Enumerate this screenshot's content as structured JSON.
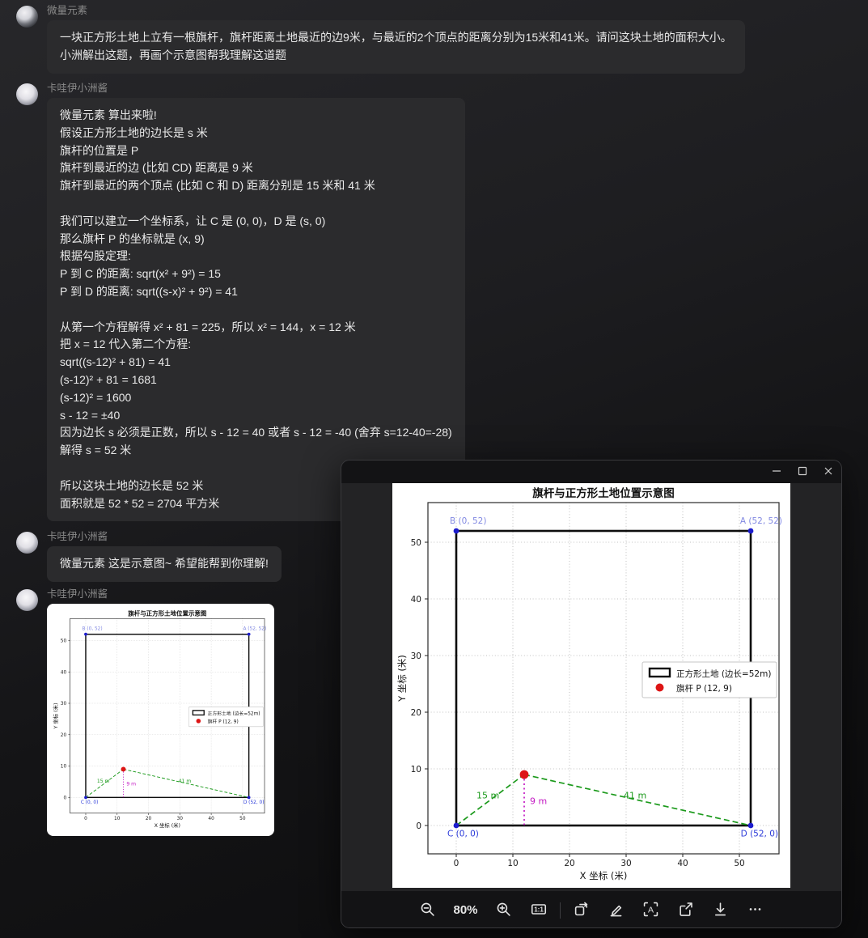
{
  "chat": {
    "messages": [
      {
        "author": "微量元素",
        "lines": [
          "一块正方形土地上立有一根旗杆，旗杆距离土地最近的边9米，与最近的2个顶点的距离分别为15米和41米。请问这块土地的面积大小。",
          "小洲解出这题，再画个示意图帮我理解这道题"
        ]
      },
      {
        "author": "卡哇伊小洲酱",
        "lines": [
          "微量元素 算出来啦!",
          "假设正方形土地的边长是 s 米",
          "旗杆的位置是 P",
          "旗杆到最近的边 (比如 CD) 距离是 9 米",
          "旗杆到最近的两个顶点 (比如 C 和 D) 距离分别是 15 米和 41 米",
          "",
          "我们可以建立一个坐标系，让 C 是 (0, 0)，D 是 (s, 0)",
          "那么旗杆 P 的坐标就是 (x, 9)",
          "根据勾股定理:",
          "P 到 C 的距离: sqrt(x² + 9²) = 15",
          "P 到 D 的距离: sqrt((s-x)² + 9²) = 41",
          "",
          "从第一个方程解得 x² + 81 = 225，所以 x² = 144，x = 12 米",
          "把 x = 12 代入第二个方程:",
          "sqrt((s-12)² + 81) = 41",
          "(s-12)² + 81 = 1681",
          "(s-12)² = 1600",
          "s - 12 = ±40",
          "因为边长 s 必须是正数，所以 s - 12 = 40 或者 s - 12 = -40 (舍弃 s=12-40=-28)",
          "解得 s = 52 米",
          "",
          "所以这块土地的边长是 52 米",
          "面积就是 52 * 52 = 2704 平方米"
        ]
      },
      {
        "author": "卡哇伊小洲酱",
        "lines": [
          "微量元素 这是示意图~ 希望能帮到你理解!"
        ]
      },
      {
        "author": "卡哇伊小洲酱",
        "attachment": "chart-image"
      }
    ]
  },
  "viewer": {
    "window_controls": [
      "minimize-icon",
      "maximize-icon",
      "close-icon"
    ],
    "toolbar": {
      "zoom_level": "80%",
      "actual_size_label": "1:1",
      "items": [
        "zoom-out-icon",
        "zoom-level",
        "zoom-in-icon",
        "actual-size-icon",
        "divider",
        "rotate-icon",
        "edit-icon",
        "ocr-icon",
        "share-icon",
        "download-icon",
        "more-icon"
      ]
    }
  },
  "chart_data": {
    "type": "scatter",
    "title": "旗杆与正方形土地位置示意图",
    "xlabel": "X 坐标 (米)",
    "ylabel": "Y 坐标 (米)",
    "xlim": [
      -5,
      57
    ],
    "ylim": [
      -5,
      57
    ],
    "ticks": [
      0,
      10,
      20,
      30,
      40,
      50
    ],
    "grid": true,
    "square": {
      "side": 52,
      "corners": [
        {
          "name": "B",
          "x": 0,
          "y": 52
        },
        {
          "name": "A",
          "x": 52,
          "y": 52
        },
        {
          "name": "C",
          "x": 0,
          "y": 0
        },
        {
          "name": "D",
          "x": 52,
          "y": 0
        }
      ]
    },
    "flagpole": {
      "name": "P",
      "x": 12,
      "y": 9
    },
    "distance_lines": [
      {
        "from": "C",
        "to": "P",
        "label": "15 m"
      },
      {
        "from": "P",
        "to": "D",
        "label": "41 m"
      },
      {
        "from": "P",
        "to": "foot",
        "label": "9 m"
      }
    ],
    "legend": [
      {
        "label": "正方形土地 (边长=52m)",
        "marker": "square-outline",
        "color": "#0d0d0d"
      },
      {
        "label": "旗杆 P (12, 9)",
        "marker": "dot",
        "color": "#dd1515"
      }
    ],
    "legend_position": "center-right",
    "colors": {
      "square": "#0d0d0d",
      "corner_dot": "#1c1ccd",
      "corner_label_top": "#8289e2",
      "corner_label_bottom": "#2b3ad9",
      "distance": "#1c9a1c",
      "height_line": "#c319c3",
      "point": "#dd1515",
      "grid": "#adadad"
    }
  }
}
